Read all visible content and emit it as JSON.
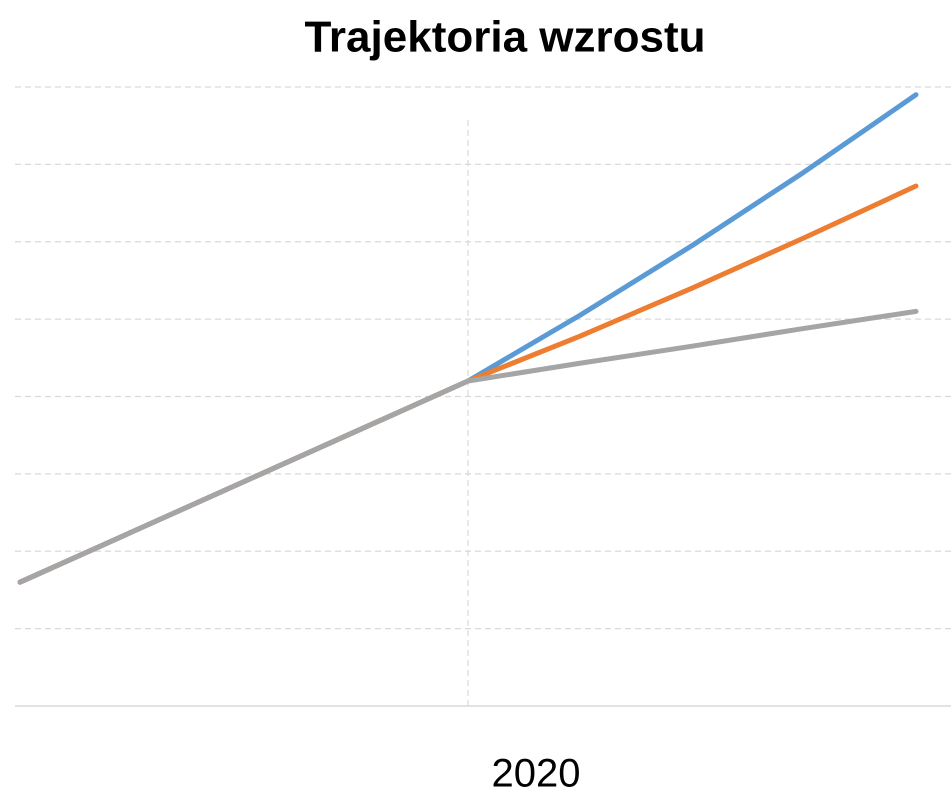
{
  "chart_data": {
    "type": "line",
    "title": "Trajektoria wzrostu",
    "categories": [
      null,
      null,
      null,
      null,
      "2020",
      null,
      null,
      null,
      null
    ],
    "series": [
      {
        "color": "#5b9bd5",
        "values": [
          1.6,
          2.25,
          2.9,
          3.55,
          4.2,
          5.05,
          5.95,
          6.9,
          7.9
        ]
      },
      {
        "color": "#ed7d31",
        "values": [
          1.6,
          2.25,
          2.9,
          3.55,
          4.2,
          4.78,
          5.4,
          6.05,
          6.72
        ]
      },
      {
        "color": "#a5a5a5",
        "values": [
          1.6,
          2.25,
          2.9,
          3.55,
          4.2,
          4.43,
          4.65,
          4.88,
          5.1
        ]
      }
    ],
    "ylim": [
      0,
      8
    ],
    "yticks": [
      0,
      1,
      2,
      3,
      4,
      5,
      6,
      7,
      8
    ],
    "grid": true,
    "xgrid": true
  }
}
